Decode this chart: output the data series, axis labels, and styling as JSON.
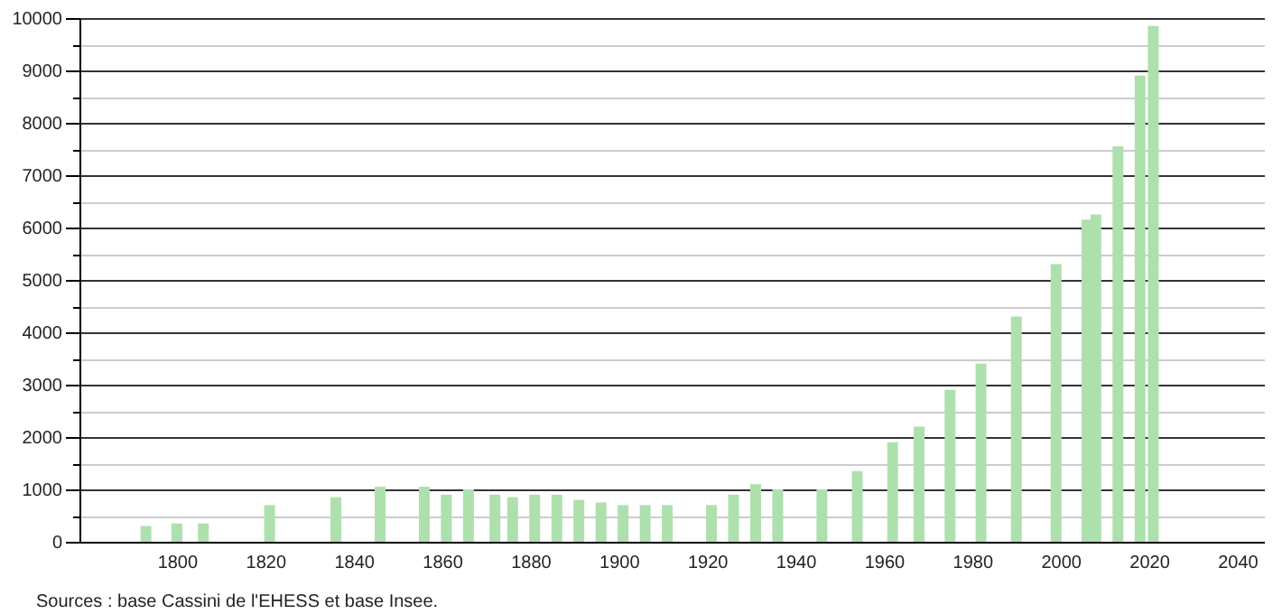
{
  "chart_data": {
    "type": "bar",
    "x": [
      1793,
      1800,
      1806,
      1821,
      1836,
      1846,
      1856,
      1861,
      1866,
      1872,
      1876,
      1881,
      1886,
      1891,
      1896,
      1901,
      1906,
      1911,
      1921,
      1926,
      1931,
      1936,
      1946,
      1954,
      1962,
      1968,
      1975,
      1982,
      1990,
      1999,
      2006,
      2008,
      2013,
      2018,
      2021
    ],
    "values": [
      300,
      350,
      350,
      700,
      850,
      1050,
      1050,
      900,
      1000,
      900,
      850,
      900,
      900,
      800,
      750,
      700,
      700,
      700,
      700,
      900,
      1100,
      1000,
      1000,
      1350,
      1900,
      2200,
      2900,
      3400,
      4300,
      5300,
      6150,
      6250,
      7550,
      8900,
      9850
    ],
    "color": "#ade0ad",
    "xlim": [
      1780,
      2044
    ],
    "xticks": [
      1800,
      1820,
      1840,
      1860,
      1880,
      1900,
      1920,
      1940,
      1960,
      1980,
      2000,
      2020,
      2040
    ],
    "ylim": [
      0,
      10000
    ],
    "yticks": [
      0,
      {
        "value": 500,
        "label": null
      },
      1000,
      {
        "value": 1500,
        "label": null
      },
      2000,
      {
        "value": 2500,
        "label": null
      },
      3000,
      {
        "value": 3500,
        "label": null
      },
      4000,
      {
        "value": 4500,
        "label": null
      },
      5000,
      {
        "value": 5500,
        "label": null
      },
      6000,
      {
        "value": 6500,
        "label": null
      },
      7000,
      {
        "value": 7500,
        "label": null
      },
      8000,
      {
        "value": 8500,
        "label": null
      },
      9000,
      {
        "value": 9500,
        "label": null
      },
      10000
    ],
    "grid": "y",
    "annotations": [
      "Sources : base Cassini de l'EHESS et base Insee."
    ]
  }
}
